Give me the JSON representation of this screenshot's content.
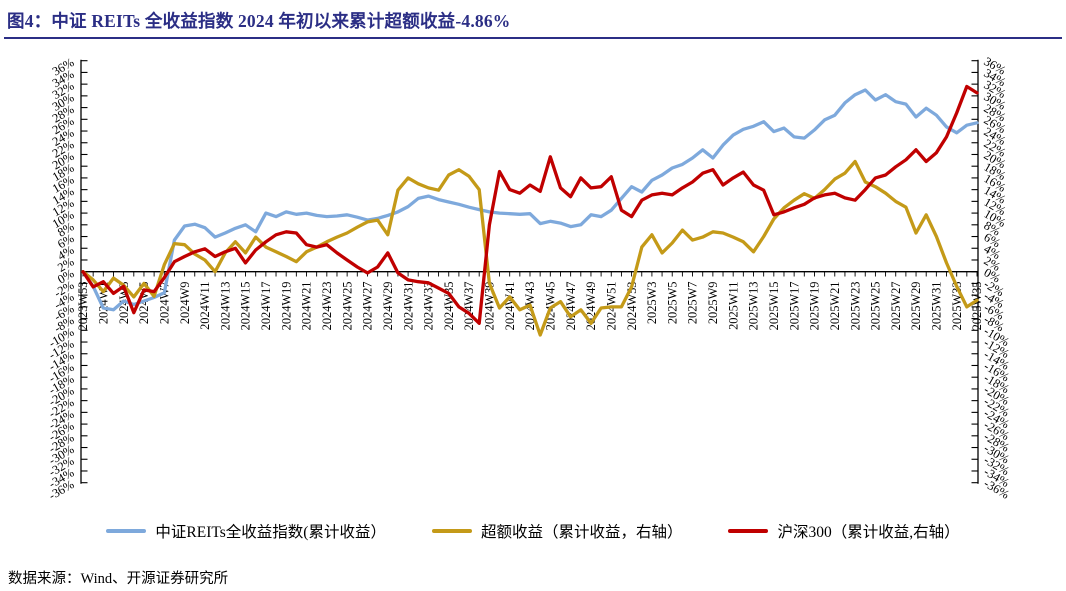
{
  "title": "图4：中证 REITs 全收益指数 2024 年初以来累计超额收益-4.86%",
  "source": "数据来源：Wind、开源证券研究所",
  "colors": {
    "accent_navy": "#2b2e85",
    "axis": "#000000",
    "series_reits_blue": "#7ea9dc",
    "series_excess_gold": "#c49a18",
    "series_csi300_red": "#c00000"
  },
  "chart_data": {
    "type": "line",
    "title": "图4：中证 REITs 全收益指数 2024 年初以来累计超额收益-4.86%",
    "unit": "%",
    "grid": false,
    "legend_position": "bottom",
    "y_axis_left": {
      "min": -36,
      "max": 36,
      "step": 2
    },
    "y_axis_right": {
      "min": -36,
      "max": 36,
      "step": 2
    },
    "y_tick_labels": [
      "36%",
      "34%",
      "32%",
      "30%",
      "28%",
      "26%",
      "24%",
      "22%",
      "20%",
      "18%",
      "16%",
      "14%",
      "12%",
      "10%",
      "8%",
      "6%",
      "4%",
      "2%",
      "0%",
      "-2%",
      "-4%",
      "-6%",
      "-8%",
      "-10%",
      "-12%",
      "-14%",
      "-16%",
      "-18%",
      "-20%",
      "-22%",
      "-24%",
      "-26%",
      "-28%",
      "-30%",
      "-32%",
      "-34%",
      "-36%"
    ],
    "x_label_every_n_points": 2,
    "x_labels": [
      "2023W53",
      "2024W1",
      "2024W3",
      "2024W5",
      "2024W7",
      "2024W9",
      "2024W11",
      "2024W13",
      "2024W15",
      "2024W17",
      "2024W19",
      "2024W21",
      "2024W23",
      "2024W25",
      "2024W27",
      "2024W29",
      "2024W31",
      "2024W33",
      "2024W35",
      "2024W37",
      "2024W39",
      "2024W41",
      "2024W43",
      "2024W45",
      "2024W47",
      "2024W49",
      "2024W51",
      "2024W53",
      "2025W3",
      "2025W5",
      "2025W7",
      "2025W9",
      "2025W11",
      "2025W13",
      "2025W15",
      "2025W17",
      "2025W19",
      "2025W21",
      "2025W23",
      "2025W25",
      "2025W27",
      "2025W29",
      "2025W31",
      "2025W33",
      "2025W35"
    ],
    "series": [
      {
        "name": "中证REITs全收益指数(累计收益）",
        "axis": "left",
        "color": "#7ea9dc",
        "values": [
          0,
          -2.5,
          -6.2,
          -6.5,
          -5,
          -5.6,
          -5,
          -4.4,
          -3.6,
          5.4,
          7.8,
          8.1,
          7.5,
          5.9,
          6.6,
          7.4,
          8,
          6.8,
          10,
          9.4,
          10.2,
          9.8,
          10,
          9.6,
          9.4,
          9.5,
          9.7,
          9.3,
          8.8,
          9.1,
          9.6,
          10.2,
          11.1,
          12.5,
          12.9,
          12.3,
          11.9,
          11.5,
          11,
          10.6,
          10.2,
          10,
          9.9,
          9.8,
          9.9,
          8.2,
          8.6,
          8.3,
          7.7,
          8,
          9.7,
          9.4,
          10.5,
          12.5,
          14.5,
          13.6,
          15.6,
          16.5,
          17.7,
          18.3,
          19.4,
          20.8,
          19.4,
          21.6,
          23.3,
          24.3,
          24.8,
          25.6,
          23.9,
          24.5,
          23,
          22.8,
          24.2,
          25.9,
          26.7,
          28.8,
          30.2,
          31,
          29.3,
          30.2,
          29,
          28.6,
          26.4,
          27.9,
          26.7,
          24.7,
          23.7,
          25,
          25.4
        ]
      },
      {
        "name": "超额收益（累计收益，右轴）",
        "axis": "right",
        "color": "#c49a18",
        "values": [
          0,
          -1.4,
          -3.4,
          -1.1,
          -2.3,
          -4.3,
          -2,
          -4.2,
          1.2,
          4.8,
          4.6,
          3,
          2,
          0,
          3.2,
          5.1,
          3.2,
          5.9,
          4.2,
          3.4,
          2.6,
          1.7,
          3.4,
          4.2,
          5.1,
          5.9,
          6.6,
          7.6,
          8.5,
          8.8,
          6.3,
          13.9,
          16,
          15,
          14.3,
          13.9,
          16.5,
          17.4,
          16.3,
          14,
          -2,
          -6.2,
          -4.3,
          -6.5,
          -5.7,
          -10.8,
          -6.2,
          -5.1,
          -7.7,
          -6.5,
          -8.8,
          -6.2,
          -6,
          -6,
          -2.6,
          4.2,
          6.3,
          3.2,
          4.9,
          7.1,
          5.4,
          5.9,
          6.8,
          6.6,
          5.9,
          5.1,
          3.4,
          6,
          9,
          10.9,
          12.2,
          13.3,
          12.5,
          14,
          15.8,
          16.8,
          18.8,
          15.3,
          14.5,
          13.4,
          12,
          11,
          6.6,
          9.7,
          6,
          1.5,
          -2.5,
          -6,
          -4.86
        ]
      },
      {
        "name": "沪深300（累计收益,右轴）",
        "axis": "right",
        "color": "#c00000",
        "values": [
          0,
          -2.6,
          -1.7,
          -3.7,
          -2.5,
          -7,
          -3.1,
          -3.4,
          -1,
          1.7,
          2.6,
          3.4,
          3.9,
          2.6,
          3.4,
          4,
          1.5,
          3.7,
          5.1,
          6.3,
          6.8,
          6.6,
          4.6,
          4.2,
          4.6,
          3.2,
          2,
          0.8,
          -0.2,
          0.8,
          3.2,
          -0.2,
          -1.4,
          -1.7,
          -1.9,
          -2.8,
          -3.7,
          -6,
          -7.1,
          -8.8,
          8,
          17.1,
          14,
          13.4,
          14.8,
          13.7,
          19.6,
          14.3,
          12.8,
          16,
          14.3,
          14.5,
          16.2,
          10.5,
          9.4,
          12.2,
          13.1,
          13.4,
          13.1,
          14.3,
          15.3,
          16.8,
          17.4,
          14.8,
          16,
          17,
          14.8,
          13.9,
          9.7,
          10.2,
          10.9,
          11.5,
          12.6,
          13.1,
          13.4,
          12.6,
          12.2,
          14,
          16,
          16.5,
          17.9,
          19.1,
          20.8,
          18.8,
          20.3,
          23,
          27.1,
          31.6,
          30.5
        ]
      }
    ]
  }
}
